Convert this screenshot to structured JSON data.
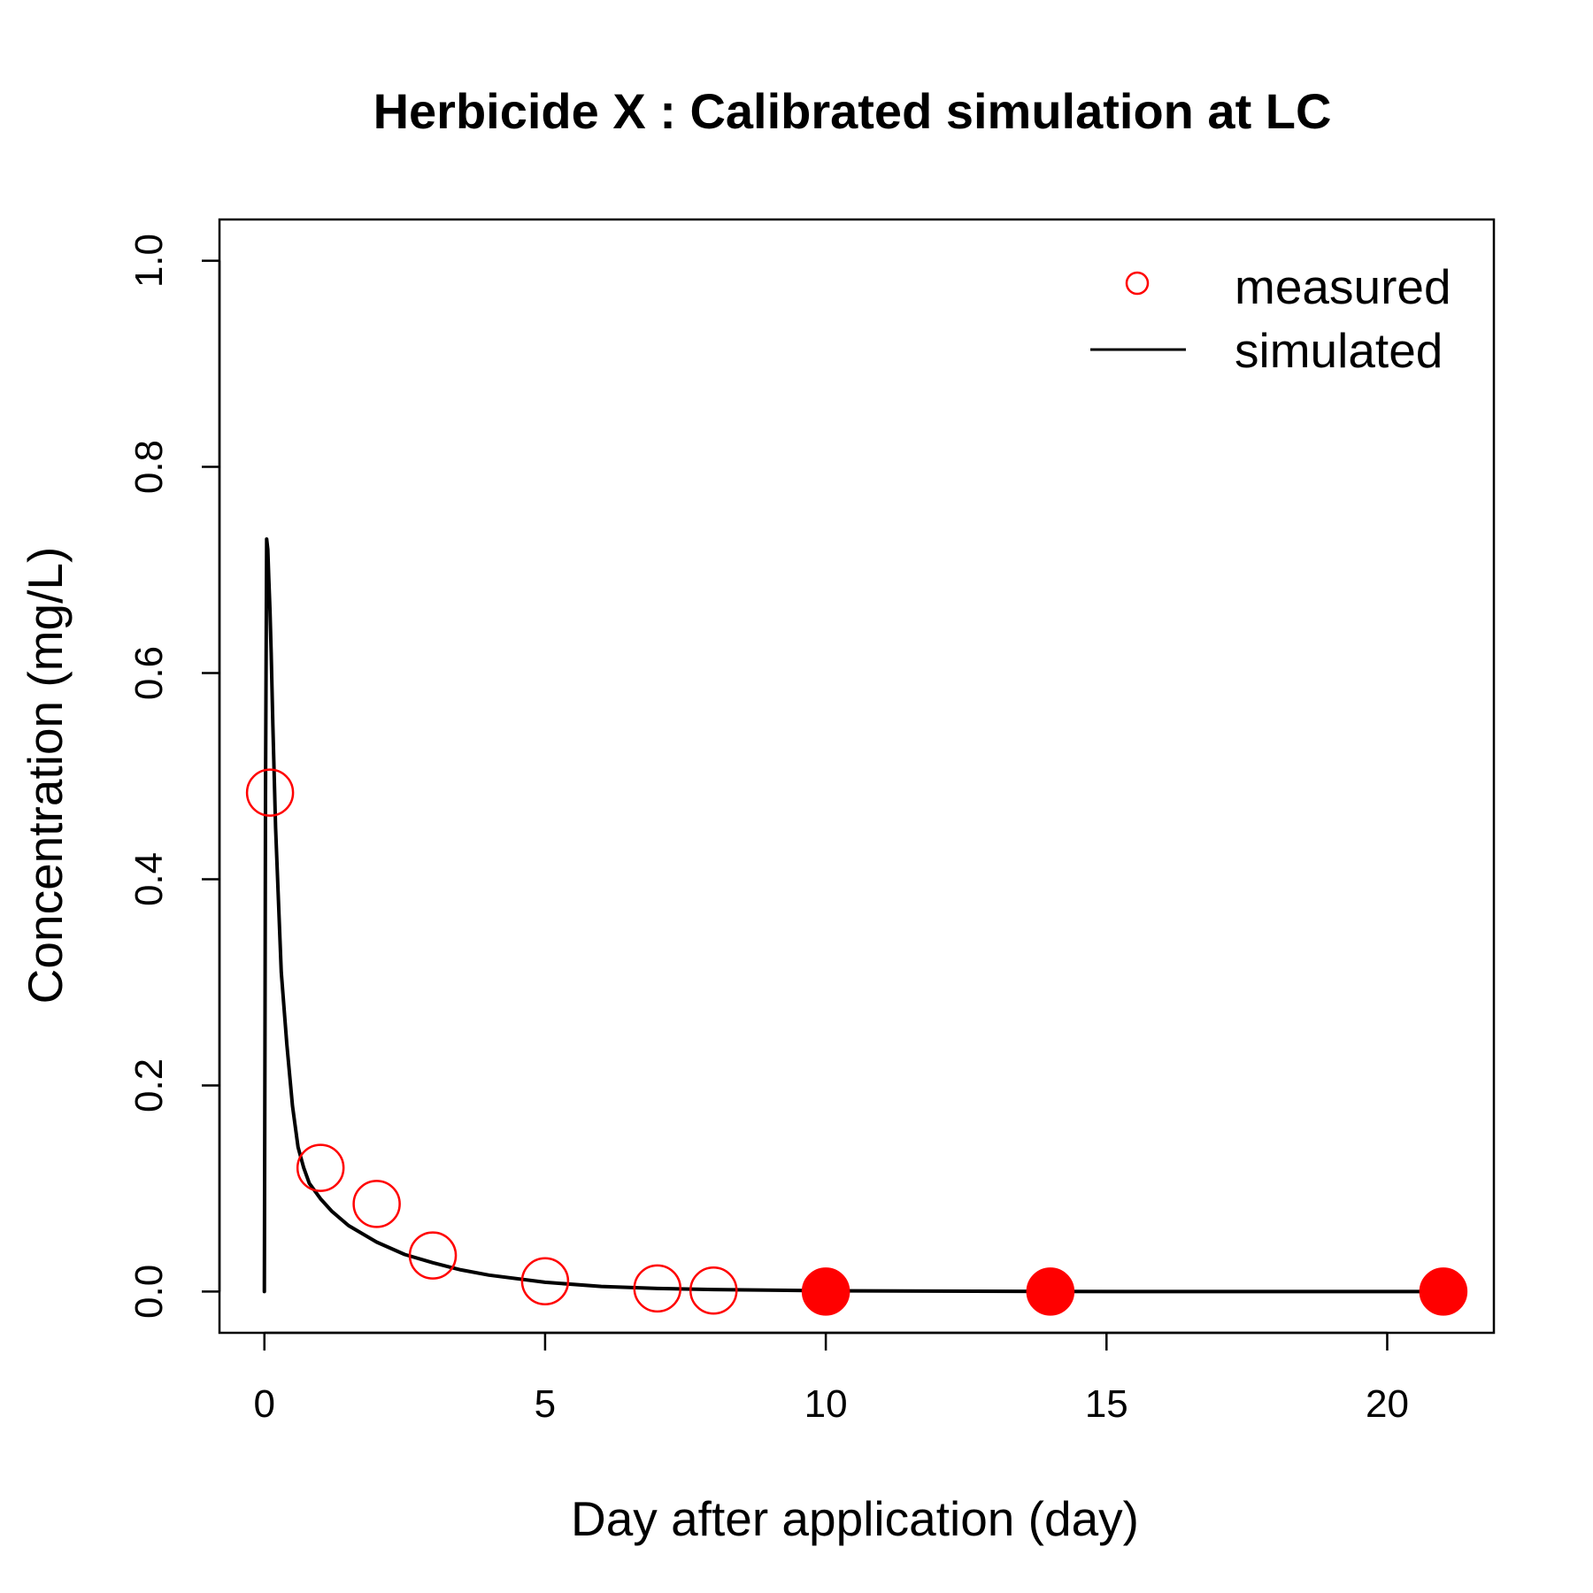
{
  "chart_data": {
    "type": "scatter",
    "title": "Herbicide X : Calibrated simulation at  LC",
    "xlabel": "Day after application (day)",
    "ylabel": "Concentration (mg/L)",
    "xlim": [
      -0.8,
      21.9
    ],
    "ylim": [
      -0.04,
      1.04
    ],
    "x_ticks": [
      0,
      5,
      10,
      15,
      20
    ],
    "x_tick_labels": [
      "0",
      "5",
      "10",
      "15",
      "20"
    ],
    "y_ticks": [
      0.0,
      0.2,
      0.4,
      0.6,
      0.8,
      1.0
    ],
    "y_tick_labels": [
      "0.0",
      "0.2",
      "0.4",
      "0.6",
      "0.8",
      "1.0"
    ],
    "grid": false,
    "legend_position": "top-right",
    "legend": [
      {
        "label": "measured",
        "marker": "open-circle",
        "color": "#ff0000"
      },
      {
        "label": "simulated",
        "marker": "line",
        "color": "#000000"
      }
    ],
    "series": [
      {
        "name": "measured",
        "kind": "points",
        "color": "#ff0000",
        "points": [
          {
            "x": 0.1,
            "y": 0.484,
            "filled": false
          },
          {
            "x": 1,
            "y": 0.12,
            "filled": false
          },
          {
            "x": 2,
            "y": 0.085,
            "filled": false
          },
          {
            "x": 3,
            "y": 0.035,
            "filled": false
          },
          {
            "x": 5,
            "y": 0.01,
            "filled": false
          },
          {
            "x": 7,
            "y": 0.003,
            "filled": false
          },
          {
            "x": 8,
            "y": 0.001,
            "filled": false
          },
          {
            "x": 10,
            "y": 0.0,
            "filled": true
          },
          {
            "x": 14,
            "y": 0.0,
            "filled": true
          },
          {
            "x": 21,
            "y": 0.0,
            "filled": true
          }
        ]
      },
      {
        "name": "simulated",
        "kind": "line",
        "color": "#000000",
        "x": [
          0,
          0.01,
          0.02,
          0.04,
          0.06,
          0.08,
          0.1,
          0.12,
          0.15,
          0.2,
          0.3,
          0.4,
          0.5,
          0.6,
          0.7,
          0.8,
          1.0,
          1.2,
          1.5,
          2.0,
          2.5,
          3.0,
          3.5,
          4.0,
          5.0,
          6.0,
          7.0,
          8.0,
          10.0,
          14.0,
          21.0
        ],
        "y": [
          0.0,
          0.24,
          0.48,
          0.73,
          0.72,
          0.69,
          0.66,
          0.62,
          0.55,
          0.45,
          0.31,
          0.24,
          0.18,
          0.14,
          0.12,
          0.105,
          0.09,
          0.078,
          0.064,
          0.048,
          0.036,
          0.028,
          0.021,
          0.016,
          0.009,
          0.005,
          0.003,
          0.002,
          0.0008,
          0.0001,
          0.0
        ]
      }
    ]
  }
}
